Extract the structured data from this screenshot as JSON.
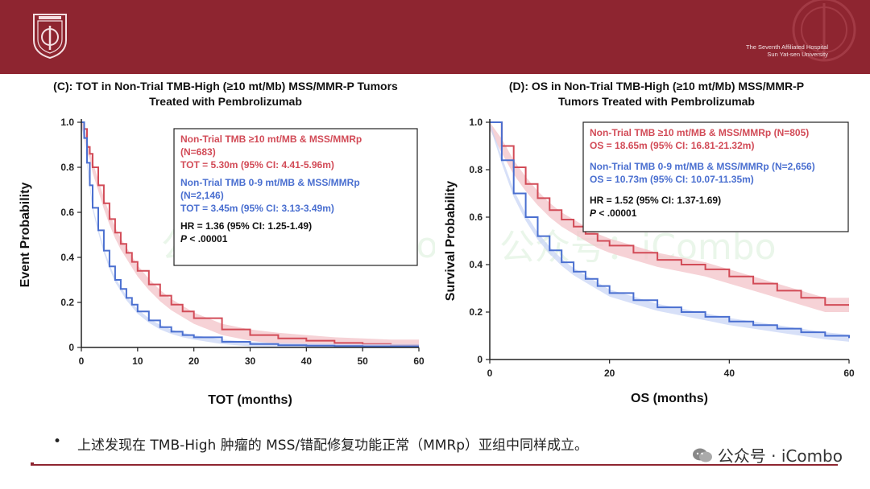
{
  "header": {
    "hospital_line1": "The Seventh Affiliated Hospital",
    "hospital_line2": "Sun Yat-sen University",
    "logo_icon": "university-seal-icon",
    "color": "#8e2530"
  },
  "bullet": "上述发现在 TMB-High 肿瘤的 MSS/错配修复功能正常（MMRp）亚组中同样成立。",
  "watermark": "公众号 · iCombo",
  "chart_watermark": "公众号：iCombo",
  "colors": {
    "red": "#d24b57",
    "blue": "#4a6fd0",
    "red_band": "#f3c3c8",
    "blue_band": "#c9d6f5"
  },
  "chart_data": [
    {
      "id": "C",
      "type": "line",
      "title_line1": "(C): TOT in Non-Trial TMB-High (≥10 mt/Mb) MSS/MMR-P Tumors",
      "title_line2": "Treated with Pembrolizumab",
      "xlabel": "TOT (months)",
      "ylabel": "Event Probability",
      "xlim": [
        0,
        60
      ],
      "ylim": [
        0,
        1.0
      ],
      "xticks": [
        0,
        10,
        20,
        30,
        40,
        50,
        60
      ],
      "yticks": [
        0,
        0.2,
        0.4,
        0.6,
        0.8,
        1.0
      ],
      "ytick_labels": [
        "0",
        "0.2",
        "0.4",
        "0.6",
        "0.8",
        "1.0"
      ],
      "legend_red": [
        "Non-Trial TMB ≥10 mt/MB & MSS/MMRp",
        "(N=683)",
        "TOT = 5.30m (95% CI: 4.41-5.96m)"
      ],
      "legend_blue": [
        "Non-Trial TMB 0-9 mt/MB & MSS/MMRp",
        "(N=2,146)",
        "TOT = 3.45m (95% CI: 3.13-3.49m)"
      ],
      "hr": "HR = 1.36 (95% CI: 1.25-1.49)",
      "p_italic": "P",
      "p_rest": " < .00001",
      "series": [
        {
          "name": "Non-Trial TMB ≥10 mt/MB & MSS/MMRp",
          "color": "red",
          "x": [
            0,
            0.5,
            1,
            1.5,
            2,
            3,
            4,
            5,
            6,
            7,
            8,
            9,
            10,
            12,
            14,
            16,
            18,
            20,
            25,
            30,
            35,
            40,
            45,
            50,
            55,
            60
          ],
          "y": [
            1.0,
            0.97,
            0.89,
            0.86,
            0.8,
            0.72,
            0.64,
            0.57,
            0.51,
            0.46,
            0.42,
            0.38,
            0.34,
            0.28,
            0.23,
            0.19,
            0.16,
            0.13,
            0.08,
            0.055,
            0.04,
            0.03,
            0.02,
            0.015,
            0.01,
            0.01
          ],
          "band": 0.025
        },
        {
          "name": "Non-Trial TMB 0-9 mt/MB & MSS/MMRp",
          "color": "blue",
          "x": [
            0,
            0.5,
            1,
            1.5,
            2,
            3,
            4,
            5,
            6,
            7,
            8,
            9,
            10,
            12,
            14,
            16,
            18,
            20,
            25,
            30,
            35,
            40,
            45,
            50,
            55,
            60
          ],
          "y": [
            1.0,
            0.93,
            0.82,
            0.72,
            0.62,
            0.52,
            0.43,
            0.36,
            0.3,
            0.26,
            0.22,
            0.19,
            0.16,
            0.12,
            0.09,
            0.07,
            0.055,
            0.045,
            0.025,
            0.015,
            0.01,
            0.008,
            0.006,
            0.005,
            0.005,
            0.005
          ],
          "band": 0.01
        }
      ]
    },
    {
      "id": "D",
      "type": "line",
      "title_line1": "(D): OS in Non-Trial TMB-High (≥10 mt/Mb) MSS/MMR-P",
      "title_line2": "Tumors Treated with Pembrolizumab",
      "xlabel": "OS (months)",
      "ylabel": "Survival Probability",
      "xlim": [
        0,
        60
      ],
      "ylim": [
        0,
        1.0
      ],
      "xticks": [
        0,
        20,
        40,
        60
      ],
      "yticks": [
        0,
        0.2,
        0.4,
        0.6,
        0.8,
        1.0
      ],
      "ytick_labels": [
        "0",
        "0.2",
        "0.4",
        "0.6",
        "0.8",
        "1.0"
      ],
      "legend_red": [
        "Non-Trial TMB ≥10 mt/MB & MSS/MMRp (N=805)",
        "OS = 18.65m (95% CI: 16.81-21.32m)"
      ],
      "legend_blue": [
        "Non-Trial TMB 0-9 mt/MB & MSS/MMRp (N=2,656)",
        "OS = 10.73m (95% CI: 10.07-11.35m)"
      ],
      "hr": "HR = 1.52 (95% CI: 1.37-1.69)",
      "p_italic": "P",
      "p_rest": " < .00001",
      "series": [
        {
          "name": "Non-Trial TMB ≥10 mt/MB & MSS/MMRp",
          "color": "red",
          "x": [
            0,
            2,
            4,
            6,
            8,
            10,
            12,
            14,
            16,
            18,
            20,
            24,
            28,
            32,
            36,
            40,
            44,
            48,
            52,
            56,
            60
          ],
          "y": [
            1.0,
            0.9,
            0.81,
            0.74,
            0.68,
            0.63,
            0.59,
            0.56,
            0.53,
            0.5,
            0.48,
            0.45,
            0.42,
            0.4,
            0.38,
            0.35,
            0.32,
            0.29,
            0.26,
            0.23,
            0.23
          ],
          "band": 0.03
        },
        {
          "name": "Non-Trial TMB 0-9 mt/MB & MSS/MMRp",
          "color": "blue",
          "x": [
            0,
            2,
            4,
            6,
            8,
            10,
            12,
            14,
            16,
            18,
            20,
            24,
            28,
            32,
            36,
            40,
            44,
            48,
            52,
            56,
            60
          ],
          "y": [
            1.0,
            0.84,
            0.7,
            0.6,
            0.52,
            0.46,
            0.41,
            0.37,
            0.34,
            0.31,
            0.28,
            0.25,
            0.22,
            0.2,
            0.18,
            0.16,
            0.145,
            0.13,
            0.115,
            0.1,
            0.09
          ],
          "band": 0.015
        }
      ]
    }
  ]
}
